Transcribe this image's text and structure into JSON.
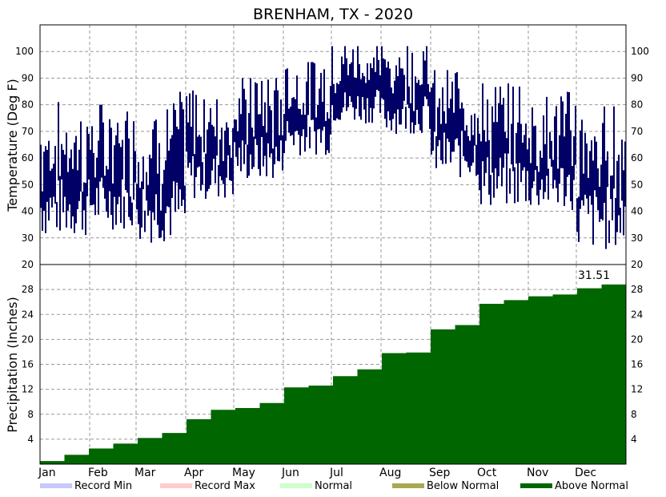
{
  "chart_data": [
    {
      "type": "bar",
      "title": "BRENHAM, TX - 2020",
      "ylabel": "Temperature (Deg F)",
      "ylim": [
        20,
        110
      ],
      "yticks": [
        30,
        40,
        50,
        60,
        70,
        80,
        90,
        100
      ],
      "grid": true,
      "colors": {
        "bars": "#000066"
      },
      "monthly_ranges": [
        {
          "month": "Jan",
          "low_min": 30,
          "high_max": 81
        },
        {
          "month": "Feb",
          "low_min": 33,
          "high_max": 80
        },
        {
          "month": "Mar",
          "low_min": 28,
          "high_max": 85
        },
        {
          "month": "Apr",
          "low_min": 44,
          "high_max": 86
        },
        {
          "month": "May",
          "low_min": 51,
          "high_max": 90
        },
        {
          "month": "Jun",
          "low_min": 61,
          "high_max": 96
        },
        {
          "month": "Jul",
          "low_min": 73,
          "high_max": 102
        },
        {
          "month": "Aug",
          "low_min": 69,
          "high_max": 102
        },
        {
          "month": "Sep",
          "low_min": 52,
          "high_max": 93
        },
        {
          "month": "Oct",
          "low_min": 41,
          "high_max": 88
        },
        {
          "month": "Nov",
          "low_min": 40,
          "high_max": 85
        },
        {
          "month": "Dec",
          "low_min": 25,
          "high_max": 80
        }
      ]
    },
    {
      "type": "area",
      "ylabel": "Precipitation (Inches)",
      "ylim": [
        0,
        32
      ],
      "yticks": [
        4,
        8,
        12,
        16,
        20,
        24,
        28
      ],
      "annotation": "31.51",
      "x": [
        "Jan 1",
        "Jan 15",
        "Feb 1",
        "Feb 15",
        "Mar 1",
        "Mar 15",
        "Apr 1",
        "Apr 15",
        "May 1",
        "May 15",
        "Jun 1",
        "Jun 15",
        "Jul 1",
        "Jul 15",
        "Aug 1",
        "Aug 15",
        "Sep 1",
        "Sep 15",
        "Oct 1",
        "Oct 15",
        "Nov 1",
        "Nov 15",
        "Dec 1",
        "Dec 15",
        "Dec 31"
      ],
      "values": [
        0.5,
        1.5,
        2.5,
        3.3,
        4.2,
        5.0,
        7.2,
        8.7,
        9.0,
        9.8,
        12.3,
        12.6,
        14.1,
        15.2,
        17.8,
        17.9,
        21.6,
        22.3,
        25.7,
        26.3,
        26.9,
        27.2,
        28.2,
        28.8,
        31.51
      ],
      "colors": {
        "area": "#006600"
      }
    }
  ],
  "x_axis": {
    "months": [
      "Jan",
      "Feb",
      "Mar",
      "Apr",
      "May",
      "Jun",
      "Jul",
      "Aug",
      "Sep",
      "Oct",
      "Nov",
      "Dec"
    ]
  },
  "legend": {
    "placement": "bottom",
    "items": [
      {
        "label": "Record Min",
        "color": "#c8c8ff"
      },
      {
        "label": "Record Max",
        "color": "#ffcccc"
      },
      {
        "label": "Normal",
        "color": "#ccffcc"
      },
      {
        "label": "Below Normal",
        "color": "#a8a850"
      },
      {
        "label": "Above Normal",
        "color": "#006600"
      }
    ]
  }
}
